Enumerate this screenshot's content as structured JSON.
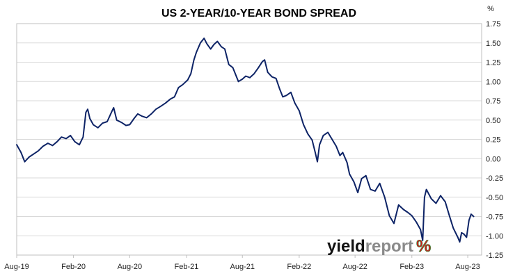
{
  "colors": {
    "series": "#0d2366",
    "logo_dark": "#111111",
    "logo_light": "#8a8a8a",
    "logo_green": "#2e8b3a",
    "logo_red": "#cc1f1f"
  },
  "logo": {
    "part1": "yield",
    "part2": "report",
    "symbol": "%"
  },
  "chart_data": {
    "type": "line",
    "title": "US 2-YEAR/10-YEAR BOND SPREAD",
    "ylabel": "%",
    "xlabel": "",
    "ylim": [
      -1.25,
      1.75
    ],
    "yticks": [
      1.75,
      1.5,
      1.25,
      1.0,
      0.75,
      0.5,
      0.25,
      0.0,
      -0.25,
      -0.5,
      -0.75,
      -1.0,
      -1.25
    ],
    "ytick_labels": [
      "1.75",
      "1.50",
      "1.25",
      "1.00",
      "0.75",
      "0.50",
      "0.25",
      "0.00",
      "-0.25",
      "-0.50",
      "-0.75",
      "-1.00",
      "-1.25"
    ],
    "xlim": [
      "2019-08-01",
      "2023-09-15"
    ],
    "xticks": [
      "2019-08-01",
      "2020-02-01",
      "2020-08-01",
      "2021-02-01",
      "2021-08-01",
      "2022-02-01",
      "2022-08-01",
      "2023-02-01",
      "2023-08-01"
    ],
    "xtick_labels": [
      "Aug-19",
      "Feb-20",
      "Aug-20",
      "Feb-21",
      "Aug-21",
      "Feb-22",
      "Aug-22",
      "Feb-23",
      "Aug-23"
    ],
    "grid": "horizontal",
    "series": [
      {
        "points": [
          [
            "2019-08-01",
            0.18
          ],
          [
            "2019-08-15",
            0.08
          ],
          [
            "2019-08-27",
            -0.04
          ],
          [
            "2019-09-10",
            0.02
          ],
          [
            "2019-09-25",
            0.06
          ],
          [
            "2019-10-10",
            0.1
          ],
          [
            "2019-10-25",
            0.16
          ],
          [
            "2019-11-10",
            0.2
          ],
          [
            "2019-11-25",
            0.17
          ],
          [
            "2019-12-10",
            0.22
          ],
          [
            "2019-12-24",
            0.28
          ],
          [
            "2020-01-08",
            0.26
          ],
          [
            "2020-01-22",
            0.3
          ],
          [
            "2020-02-05",
            0.22
          ],
          [
            "2020-02-20",
            0.18
          ],
          [
            "2020-03-03",
            0.28
          ],
          [
            "2020-03-12",
            0.6
          ],
          [
            "2020-03-18",
            0.64
          ],
          [
            "2020-03-25",
            0.52
          ],
          [
            "2020-04-05",
            0.44
          ],
          [
            "2020-04-20",
            0.4
          ],
          [
            "2020-05-05",
            0.46
          ],
          [
            "2020-05-20",
            0.48
          ],
          [
            "2020-06-05",
            0.62
          ],
          [
            "2020-06-10",
            0.66
          ],
          [
            "2020-06-20",
            0.5
          ],
          [
            "2020-07-05",
            0.47
          ],
          [
            "2020-07-20",
            0.43
          ],
          [
            "2020-08-01",
            0.44
          ],
          [
            "2020-08-15",
            0.52
          ],
          [
            "2020-08-27",
            0.58
          ],
          [
            "2020-09-10",
            0.55
          ],
          [
            "2020-09-25",
            0.53
          ],
          [
            "2020-10-10",
            0.58
          ],
          [
            "2020-10-25",
            0.64
          ],
          [
            "2020-11-10",
            0.68
          ],
          [
            "2020-11-25",
            0.72
          ],
          [
            "2020-12-10",
            0.77
          ],
          [
            "2020-12-24",
            0.8
          ],
          [
            "2021-01-06",
            0.92
          ],
          [
            "2021-01-20",
            0.96
          ],
          [
            "2021-02-05",
            1.02
          ],
          [
            "2021-02-15",
            1.1
          ],
          [
            "2021-02-25",
            1.28
          ],
          [
            "2021-03-05",
            1.38
          ],
          [
            "2021-03-18",
            1.5
          ],
          [
            "2021-03-30",
            1.56
          ],
          [
            "2021-04-08",
            1.49
          ],
          [
            "2021-04-20",
            1.42
          ],
          [
            "2021-05-01",
            1.48
          ],
          [
            "2021-05-12",
            1.52
          ],
          [
            "2021-05-25",
            1.45
          ],
          [
            "2021-06-05",
            1.42
          ],
          [
            "2021-06-18",
            1.22
          ],
          [
            "2021-07-01",
            1.18
          ],
          [
            "2021-07-19",
            1.0
          ],
          [
            "2021-08-01",
            1.03
          ],
          [
            "2021-08-12",
            1.07
          ],
          [
            "2021-08-25",
            1.05
          ],
          [
            "2021-09-08",
            1.1
          ],
          [
            "2021-09-22",
            1.18
          ],
          [
            "2021-10-05",
            1.26
          ],
          [
            "2021-10-12",
            1.28
          ],
          [
            "2021-10-22",
            1.12
          ],
          [
            "2021-11-05",
            1.06
          ],
          [
            "2021-11-18",
            1.04
          ],
          [
            "2021-11-30",
            0.9
          ],
          [
            "2021-12-10",
            0.8
          ],
          [
            "2021-12-22",
            0.82
          ],
          [
            "2022-01-05",
            0.86
          ],
          [
            "2022-01-18",
            0.72
          ],
          [
            "2022-02-01",
            0.62
          ],
          [
            "2022-02-15",
            0.44
          ],
          [
            "2022-03-01",
            0.32
          ],
          [
            "2022-03-15",
            0.24
          ],
          [
            "2022-03-25",
            0.08
          ],
          [
            "2022-04-01",
            -0.04
          ],
          [
            "2022-04-08",
            0.18
          ],
          [
            "2022-04-20",
            0.3
          ],
          [
            "2022-05-05",
            0.34
          ],
          [
            "2022-05-20",
            0.24
          ],
          [
            "2022-06-01",
            0.16
          ],
          [
            "2022-06-13",
            0.04
          ],
          [
            "2022-06-22",
            0.08
          ],
          [
            "2022-07-06",
            -0.05
          ],
          [
            "2022-07-14",
            -0.2
          ],
          [
            "2022-07-28",
            -0.3
          ],
          [
            "2022-08-10",
            -0.44
          ],
          [
            "2022-08-22",
            -0.26
          ],
          [
            "2022-09-05",
            -0.22
          ],
          [
            "2022-09-20",
            -0.4
          ],
          [
            "2022-10-05",
            -0.42
          ],
          [
            "2022-10-20",
            -0.32
          ],
          [
            "2022-11-05",
            -0.5
          ],
          [
            "2022-11-20",
            -0.74
          ],
          [
            "2022-12-05",
            -0.84
          ],
          [
            "2022-12-20",
            -0.6
          ],
          [
            "2023-01-05",
            -0.66
          ],
          [
            "2023-01-20",
            -0.7
          ],
          [
            "2023-02-01",
            -0.74
          ],
          [
            "2023-02-15",
            -0.82
          ],
          [
            "2023-03-01",
            -0.92
          ],
          [
            "2023-03-08",
            -1.06
          ],
          [
            "2023-03-14",
            -0.5
          ],
          [
            "2023-03-20",
            -0.4
          ],
          [
            "2023-04-05",
            -0.52
          ],
          [
            "2023-04-20",
            -0.58
          ],
          [
            "2023-05-05",
            -0.48
          ],
          [
            "2023-05-20",
            -0.56
          ],
          [
            "2023-06-01",
            -0.72
          ],
          [
            "2023-06-15",
            -0.9
          ],
          [
            "2023-06-30",
            -1.02
          ],
          [
            "2023-07-06",
            -1.08
          ],
          [
            "2023-07-12",
            -0.96
          ],
          [
            "2023-07-20",
            -0.98
          ],
          [
            "2023-07-28",
            -1.02
          ],
          [
            "2023-08-05",
            -0.8
          ],
          [
            "2023-08-12",
            -0.72
          ],
          [
            "2023-08-20",
            -0.75
          ]
        ]
      }
    ]
  }
}
